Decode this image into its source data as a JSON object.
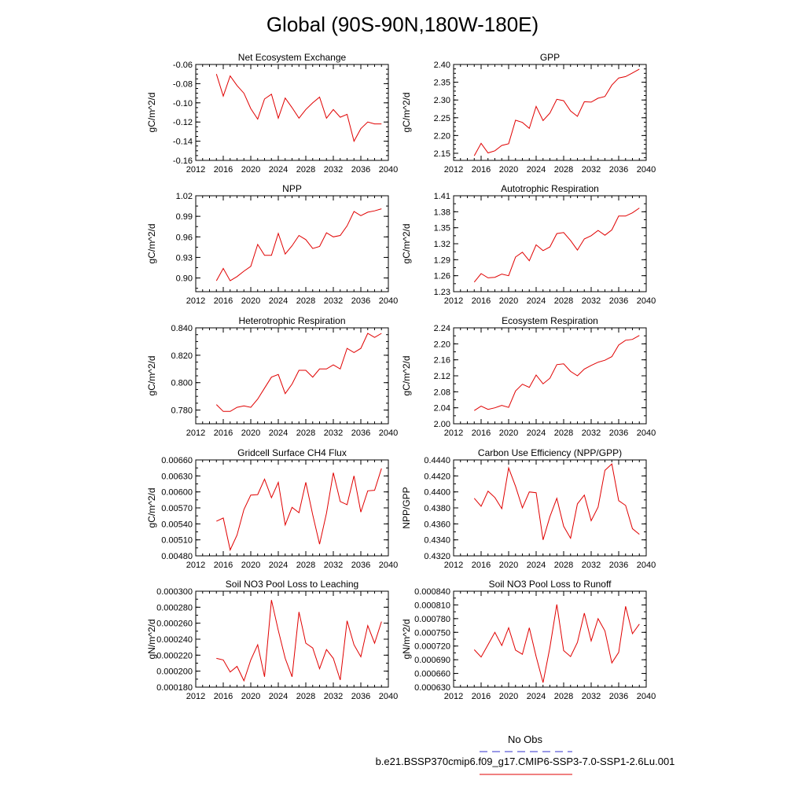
{
  "figure": {
    "title": "Global (90S-90N,180W-180E)",
    "legend": {
      "obs_label": "No Obs",
      "obs_color": "#3333cc",
      "case_label": "b.e21.BSSP370cmip6.f09_g17.CMIP6-SSP3-7.0-SSP1-2.6Lu.001",
      "case_color": "#e00000"
    }
  },
  "chart_data": [
    {
      "type": "line",
      "title": "Net Ecosystem Exchange",
      "ylabel": "gC/m^2/d",
      "xlim": [
        2012,
        2040
      ],
      "xticks": [
        2012,
        2016,
        2020,
        2024,
        2028,
        2032,
        2036,
        2040
      ],
      "ylim": [
        -0.16,
        -0.06
      ],
      "yticks": [
        "-0.06",
        "-0.08",
        "-0.10",
        "-0.12",
        "-0.14",
        "-0.16"
      ],
      "yminor": 4,
      "series": [
        {
          "x": [
            2015,
            2016,
            2017,
            2018,
            2019,
            2020,
            2021,
            2022,
            2023,
            2024,
            2025,
            2026,
            2027,
            2028,
            2029,
            2030,
            2031,
            2032,
            2033,
            2034,
            2035,
            2036,
            2037,
            2038,
            2039
          ],
          "y": [
            -0.07,
            -0.093,
            -0.072,
            -0.082,
            -0.09,
            -0.106,
            -0.117,
            -0.096,
            -0.091,
            -0.116,
            -0.095,
            -0.105,
            -0.116,
            -0.107,
            -0.1,
            -0.094,
            -0.116,
            -0.107,
            -0.115,
            -0.112,
            -0.14,
            -0.127,
            -0.12,
            -0.122,
            -0.122
          ]
        }
      ]
    },
    {
      "type": "line",
      "title": "GPP",
      "ylabel": "gC/m^2/d",
      "xlim": [
        2012,
        2040
      ],
      "xticks": [
        2012,
        2016,
        2020,
        2024,
        2028,
        2032,
        2036,
        2040
      ],
      "ylim": [
        2.13,
        2.4
      ],
      "yticks": [
        "2.40",
        "2.35",
        "2.30",
        "2.25",
        "2.20",
        "2.15"
      ],
      "yminor": 4,
      "series": [
        {
          "x": [
            2015,
            2016,
            2017,
            2018,
            2019,
            2020,
            2021,
            2022,
            2023,
            2024,
            2025,
            2026,
            2027,
            2028,
            2029,
            2030,
            2031,
            2032,
            2033,
            2034,
            2035,
            2036,
            2037,
            2038,
            2039
          ],
          "y": [
            2.143,
            2.178,
            2.151,
            2.157,
            2.172,
            2.177,
            2.243,
            2.237,
            2.22,
            2.282,
            2.242,
            2.263,
            2.302,
            2.298,
            2.269,
            2.254,
            2.295,
            2.294,
            2.305,
            2.31,
            2.342,
            2.362,
            2.366,
            2.376,
            2.387
          ]
        }
      ]
    },
    {
      "type": "line",
      "title": "NPP",
      "ylabel": "gC/m^2/d",
      "xlim": [
        2012,
        2040
      ],
      "xticks": [
        2012,
        2016,
        2020,
        2024,
        2028,
        2032,
        2036,
        2040
      ],
      "ylim": [
        0.88,
        1.02
      ],
      "yticks": [
        "1.02",
        "0.99",
        "0.96",
        "0.93",
        "0.90"
      ],
      "yminor": 2,
      "series": [
        {
          "x": [
            2015,
            2016,
            2017,
            2018,
            2019,
            2020,
            2021,
            2022,
            2023,
            2024,
            2025,
            2026,
            2027,
            2028,
            2029,
            2030,
            2031,
            2032,
            2033,
            2034,
            2035,
            2036,
            2037,
            2038,
            2039
          ],
          "y": [
            0.896,
            0.914,
            0.896,
            0.902,
            0.91,
            0.917,
            0.949,
            0.933,
            0.933,
            0.965,
            0.935,
            0.947,
            0.962,
            0.956,
            0.943,
            0.946,
            0.966,
            0.96,
            0.962,
            0.976,
            0.997,
            0.991,
            0.996,
            0.998,
            1.001
          ]
        }
      ]
    },
    {
      "type": "line",
      "title": "Autotrophic Respiration",
      "ylabel": "gC/m^2/d",
      "xlim": [
        2012,
        2040
      ],
      "xticks": [
        2012,
        2016,
        2020,
        2024,
        2028,
        2032,
        2036,
        2040
      ],
      "ylim": [
        1.23,
        1.41
      ],
      "yticks": [
        "1.41",
        "1.38",
        "1.35",
        "1.32",
        "1.29",
        "1.26",
        "1.23"
      ],
      "yminor": 2,
      "series": [
        {
          "x": [
            2015,
            2016,
            2017,
            2018,
            2019,
            2020,
            2021,
            2022,
            2023,
            2024,
            2025,
            2026,
            2027,
            2028,
            2029,
            2030,
            2031,
            2032,
            2033,
            2034,
            2035,
            2036,
            2037,
            2038,
            2039
          ],
          "y": [
            1.248,
            1.264,
            1.256,
            1.257,
            1.263,
            1.26,
            1.295,
            1.304,
            1.288,
            1.318,
            1.307,
            1.314,
            1.339,
            1.341,
            1.326,
            1.308,
            1.329,
            1.335,
            1.345,
            1.336,
            1.346,
            1.372,
            1.372,
            1.378,
            1.387
          ]
        }
      ]
    },
    {
      "type": "line",
      "title": "Heterotrophic Respiration",
      "ylabel": "gC/m^2/d",
      "xlim": [
        2012,
        2040
      ],
      "xticks": [
        2012,
        2016,
        2020,
        2024,
        2028,
        2032,
        2036,
        2040
      ],
      "ylim": [
        0.77,
        0.84
      ],
      "yticks": [
        "0.840",
        "0.820",
        "0.800",
        "0.780"
      ],
      "yminor": 4,
      "series": [
        {
          "x": [
            2015,
            2016,
            2017,
            2018,
            2019,
            2020,
            2021,
            2022,
            2023,
            2024,
            2025,
            2026,
            2027,
            2028,
            2029,
            2030,
            2031,
            2032,
            2033,
            2034,
            2035,
            2036,
            2037,
            2038,
            2039
          ],
          "y": [
            0.784,
            0.779,
            0.779,
            0.782,
            0.783,
            0.782,
            0.788,
            0.796,
            0.804,
            0.806,
            0.792,
            0.799,
            0.809,
            0.809,
            0.804,
            0.81,
            0.81,
            0.813,
            0.81,
            0.825,
            0.822,
            0.825,
            0.836,
            0.833,
            0.836
          ]
        }
      ]
    },
    {
      "type": "line",
      "title": "Ecosystem Respiration",
      "ylabel": "gC/m^2/d",
      "xlim": [
        2012,
        2040
      ],
      "xticks": [
        2012,
        2016,
        2020,
        2024,
        2028,
        2032,
        2036,
        2040
      ],
      "ylim": [
        2.0,
        2.24
      ],
      "yticks": [
        "2.24",
        "2.20",
        "2.16",
        "2.12",
        "2.08",
        "2.04",
        "2.00"
      ],
      "yminor": 2,
      "series": [
        {
          "x": [
            2015,
            2016,
            2017,
            2018,
            2019,
            2020,
            2021,
            2022,
            2023,
            2024,
            2025,
            2026,
            2027,
            2028,
            2029,
            2030,
            2031,
            2032,
            2033,
            2034,
            2035,
            2036,
            2037,
            2038,
            2039
          ],
          "y": [
            2.033,
            2.044,
            2.036,
            2.04,
            2.046,
            2.041,
            2.082,
            2.099,
            2.091,
            2.122,
            2.1,
            2.114,
            2.148,
            2.15,
            2.131,
            2.12,
            2.137,
            2.146,
            2.154,
            2.159,
            2.168,
            2.197,
            2.209,
            2.211,
            2.221
          ]
        }
      ]
    },
    {
      "type": "line",
      "title": "Gridcell Surface CH4 Flux",
      "ylabel": "gC/m^2/d",
      "xlim": [
        2012,
        2040
      ],
      "xticks": [
        2012,
        2016,
        2020,
        2024,
        2028,
        2032,
        2036,
        2040
      ],
      "ylim": [
        0.0048,
        0.0066
      ],
      "yticks": [
        "0.00660",
        "0.00630",
        "0.00600",
        "0.00570",
        "0.00540",
        "0.00510",
        "0.00480"
      ],
      "yminor": 2,
      "series": [
        {
          "x": [
            2015,
            2016,
            2017,
            2018,
            2019,
            2020,
            2021,
            2022,
            2023,
            2024,
            2025,
            2026,
            2027,
            2028,
            2029,
            2030,
            2031,
            2032,
            2033,
            2034,
            2035,
            2036,
            2037,
            2038,
            2039
          ],
          "y": [
            0.00545,
            0.00551,
            0.00491,
            0.00519,
            0.00567,
            0.00594,
            0.00595,
            0.00624,
            0.00589,
            0.00618,
            0.00538,
            0.00571,
            0.00561,
            0.00618,
            0.00557,
            0.00502,
            0.0056,
            0.00636,
            0.00582,
            0.00576,
            0.0063,
            0.00562,
            0.00602,
            0.00603,
            0.00644
          ]
        }
      ]
    },
    {
      "type": "line",
      "title": "Carbon Use Efficiency (NPP/GPP)",
      "ylabel": "NPP/GPP",
      "xlim": [
        2012,
        2040
      ],
      "xticks": [
        2012,
        2016,
        2020,
        2024,
        2028,
        2032,
        2036,
        2040
      ],
      "ylim": [
        0.432,
        0.444
      ],
      "yticks": [
        "0.4440",
        "0.4420",
        "0.4400",
        "0.4380",
        "0.4360",
        "0.4340",
        "0.4320"
      ],
      "yminor": 2,
      "series": [
        {
          "x": [
            2015,
            2016,
            2017,
            2018,
            2019,
            2020,
            2021,
            2022,
            2023,
            2024,
            2025,
            2026,
            2027,
            2028,
            2029,
            2030,
            2031,
            2032,
            2033,
            2034,
            2035,
            2036,
            2037,
            2038,
            2039
          ],
          "y": [
            0.4392,
            0.4382,
            0.4401,
            0.4393,
            0.4379,
            0.443,
            0.4407,
            0.438,
            0.44,
            0.4399,
            0.434,
            0.4369,
            0.4392,
            0.4357,
            0.4342,
            0.4385,
            0.4396,
            0.4364,
            0.4381,
            0.4427,
            0.4435,
            0.4389,
            0.4383,
            0.4354,
            0.4347
          ]
        }
      ]
    },
    {
      "type": "line",
      "title": "Soil NO3 Pool Loss to Leaching",
      "ylabel": "gN/m^2/d",
      "xlim": [
        2012,
        2040
      ],
      "xticks": [
        2012,
        2016,
        2020,
        2024,
        2028,
        2032,
        2036,
        2040
      ],
      "ylim": [
        0.00018,
        0.0003
      ],
      "yticks": [
        "0.000300",
        "0.000280",
        "0.000260",
        "0.000240",
        "0.000220",
        "0.000200",
        "0.000180"
      ],
      "yminor": 2,
      "series": [
        {
          "x": [
            2015,
            2016,
            2017,
            2018,
            2019,
            2020,
            2021,
            2022,
            2023,
            2024,
            2025,
            2026,
            2027,
            2028,
            2029,
            2030,
            2031,
            2032,
            2033,
            2034,
            2035,
            2036,
            2037,
            2038,
            2039
          ],
          "y": [
            0.000216,
            0.000214,
            0.000199,
            0.000206,
            0.000188,
            0.000214,
            0.000233,
            0.000193,
            0.000289,
            0.000251,
            0.000216,
            0.000193,
            0.000274,
            0.000235,
            0.000229,
            0.000203,
            0.000227,
            0.000216,
            0.000189,
            0.000263,
            0.000233,
            0.000218,
            0.000257,
            0.000235,
            0.000262
          ]
        }
      ]
    },
    {
      "type": "line",
      "title": "Soil NO3 Pool Loss to Runoff",
      "ylabel": "gN/m^2/d",
      "xlim": [
        2012,
        2040
      ],
      "xticks": [
        2012,
        2016,
        2020,
        2024,
        2028,
        2032,
        2036,
        2040
      ],
      "ylim": [
        0.00063,
        0.00084
      ],
      "yticks": [
        "0.000840",
        "0.000810",
        "0.000780",
        "0.000750",
        "0.000720",
        "0.000690",
        "0.000660",
        "0.000630"
      ],
      "yminor": 2,
      "series": [
        {
          "x": [
            2015,
            2016,
            2017,
            2018,
            2019,
            2020,
            2021,
            2022,
            2023,
            2024,
            2025,
            2026,
            2027,
            2028,
            2029,
            2030,
            2031,
            2032,
            2033,
            2034,
            2035,
            2036,
            2037,
            2038,
            2039
          ],
          "y": [
            0.000712,
            0.000696,
            0.000723,
            0.00075,
            0.000721,
            0.00076,
            0.000711,
            0.000702,
            0.00076,
            0.000697,
            0.00064,
            0.000717,
            0.000811,
            0.00071,
            0.000697,
            0.000728,
            0.000792,
            0.000731,
            0.00078,
            0.000753,
            0.000683,
            0.000706,
            0.000807,
            0.000747,
            0.000768
          ]
        }
      ]
    }
  ]
}
